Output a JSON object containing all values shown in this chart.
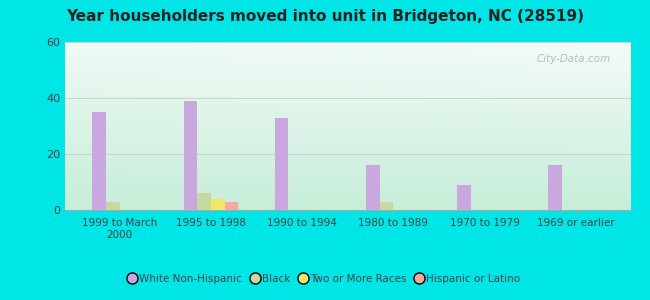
{
  "title": "Year householders moved into unit in Bridgeton, NC (28519)",
  "categories": [
    "1999 to March\n2000",
    "1995 to 1998",
    "1990 to 1994",
    "1980 to 1989",
    "1970 to 1979",
    "1969 or earlier"
  ],
  "series": {
    "White Non-Hispanic": [
      35,
      39,
      33,
      16,
      9,
      16
    ],
    "Black": [
      3,
      6,
      0,
      3,
      0,
      0
    ],
    "Two or More Races": [
      0,
      4,
      0,
      0,
      0,
      0
    ],
    "Hispanic or Latino": [
      0,
      3,
      0,
      0,
      0,
      0
    ]
  },
  "colors": {
    "White Non-Hispanic": "#c9a8e0",
    "Black": "#c8d9a0",
    "Two or More Races": "#f0e86a",
    "Hispanic or Latino": "#f5a8a0"
  },
  "ylim": [
    0,
    60
  ],
  "yticks": [
    0,
    20,
    40,
    60
  ],
  "bg_outer": "#00e5e5",
  "bg_plot_top": "#eaf5f0",
  "bg_plot_bottom": "#c8ecd8",
  "grid_color": "#cccccc",
  "bar_width": 0.15,
  "watermark": "City-Data.com"
}
